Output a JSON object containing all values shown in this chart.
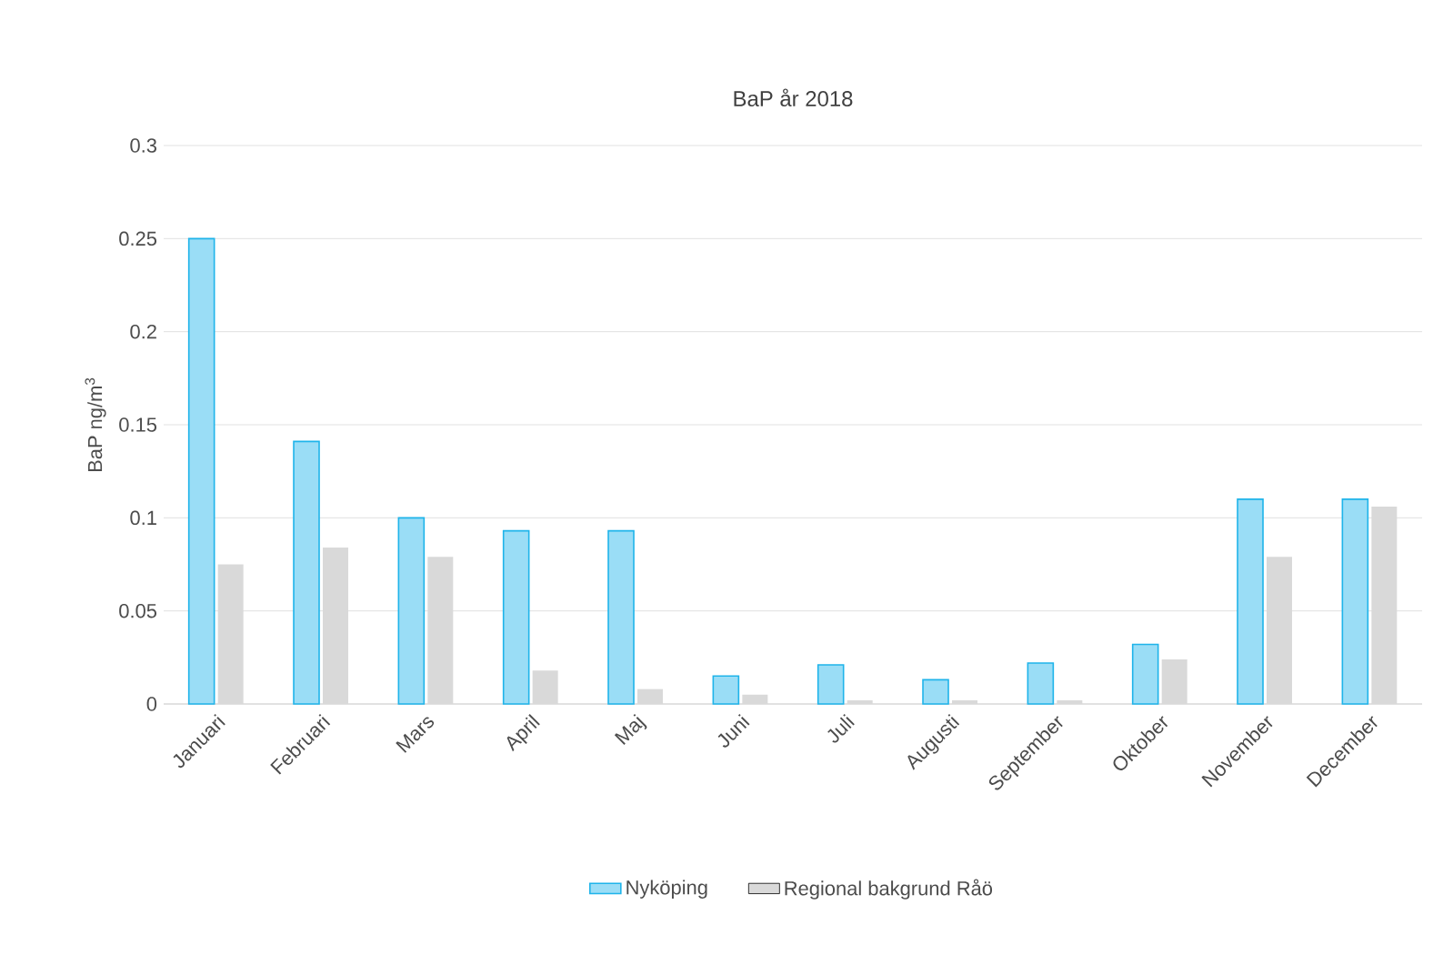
{
  "chart_data": {
    "type": "bar",
    "title": "BaP år 2018",
    "ylabel": "BaP ng/m$^{3}$",
    "categories": [
      "Januari",
      "Februari",
      "Mars",
      "April",
      "Maj",
      "Juni",
      "Juli",
      "Augusti",
      "September",
      "Oktober",
      "November",
      "December"
    ],
    "series": [
      {
        "name": "Nyköping",
        "color": "#1fb4ea",
        "values": [
          0.25,
          0.141,
          0.1,
          0.093,
          0.093,
          0.015,
          0.021,
          0.013,
          0.022,
          0.032,
          0.11,
          0.11
        ]
      },
      {
        "name": "Regional bakgrund Råö",
        "color": "#d9d9d9",
        "values": [
          0.075,
          0.084,
          0.079,
          0.018,
          0.008,
          0.005,
          0.002,
          0.002,
          0.002,
          0.024,
          0.079,
          0.106
        ]
      }
    ],
    "ylim": [
      0,
      0.3
    ],
    "yticks": [
      0,
      0.05,
      0.1,
      0.15,
      0.2,
      0.25,
      0.3
    ],
    "grid": "y",
    "legend": "bottom"
  }
}
